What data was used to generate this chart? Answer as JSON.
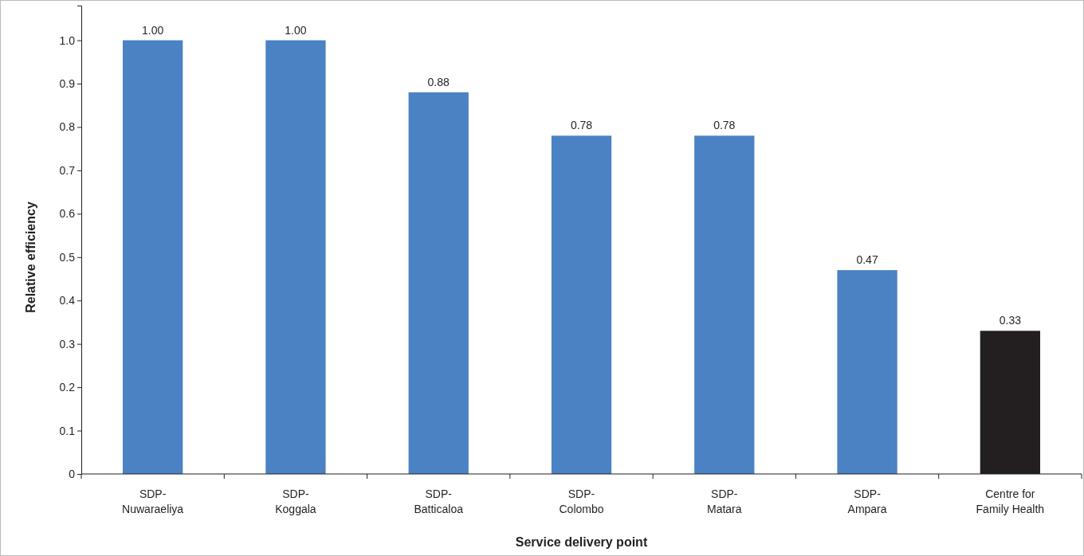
{
  "chart_data": {
    "type": "bar",
    "xlabel": "Service delivery point",
    "ylabel": "Relative efficiency",
    "categories": [
      "SDP-Nuwaraeliya",
      "SDP-Koggala",
      "SDP-Batticaloa",
      "SDP-Colombo",
      "SDP-Matara",
      "SDP-Ampara",
      "Centre for Family Health"
    ],
    "values": [
      1.0,
      1.0,
      0.88,
      0.78,
      0.78,
      0.47,
      0.33
    ],
    "value_labels": [
      "1.00",
      "1.00",
      "0.88",
      "0.78",
      "0.78",
      "0.47",
      "0.33"
    ],
    "colors": [
      "#4a82c3",
      "#4a82c3",
      "#4a82c3",
      "#4a82c3",
      "#4a82c3",
      "#4a82c3",
      "#231f20"
    ],
    "ylim": [
      0,
      1.08
    ],
    "yticks": [
      0,
      0.1,
      0.2,
      0.3,
      0.4,
      0.5,
      0.6,
      0.7,
      0.8,
      0.9,
      {
        "value": 1,
        "label": "1.0"
      }
    ],
    "grid": false
  }
}
